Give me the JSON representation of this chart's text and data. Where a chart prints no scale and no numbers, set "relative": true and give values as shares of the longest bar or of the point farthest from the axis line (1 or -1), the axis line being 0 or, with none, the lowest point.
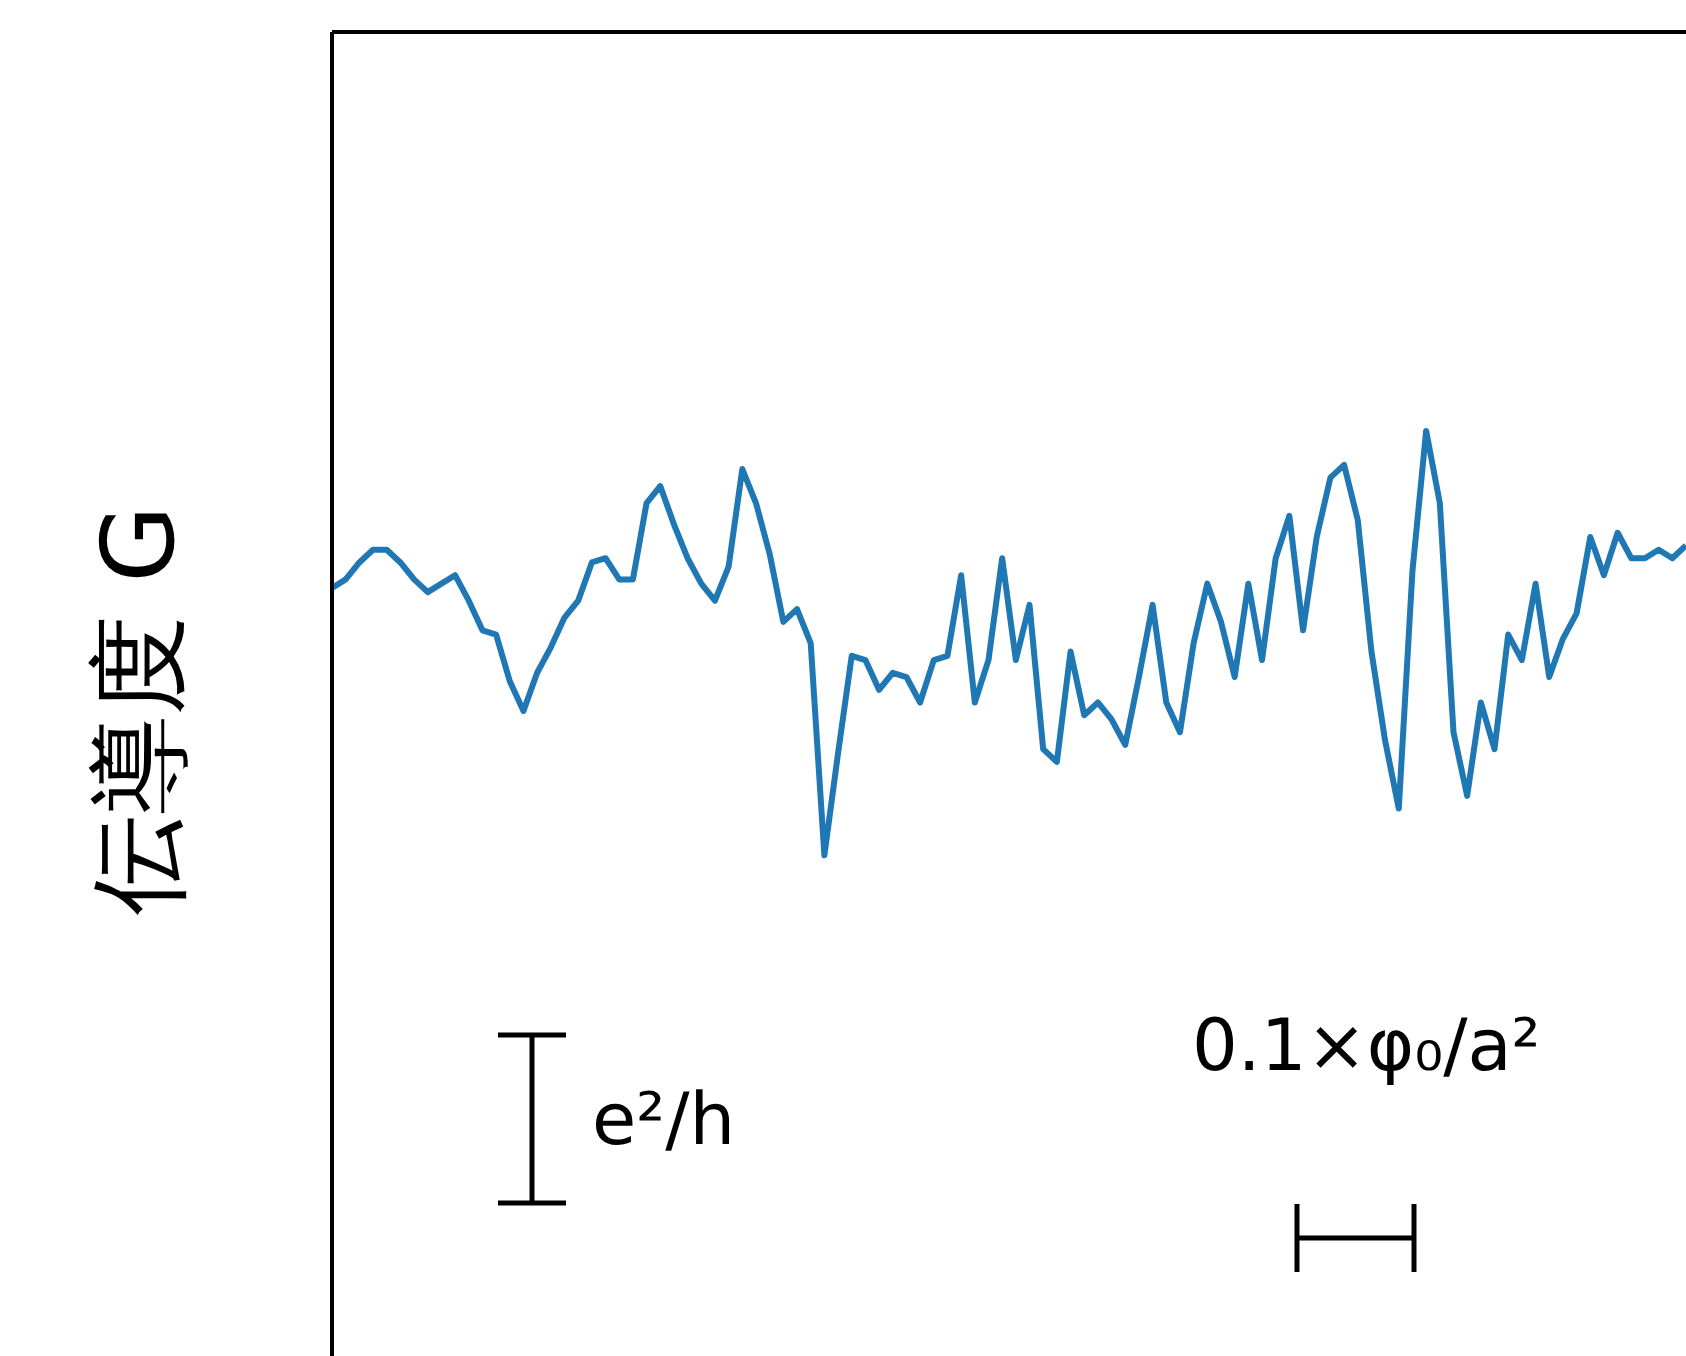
{
  "chart_data": {
    "type": "line",
    "relative": true,
    "ylabel": "伝導度 G",
    "color": "#1f77b4",
    "marker": "none",
    "categories": [
      null,
      null,
      null,
      null,
      null,
      null,
      null,
      null,
      null,
      null,
      null,
      null,
      null,
      null,
      null,
      null,
      null,
      null,
      null,
      null,
      null,
      null,
      null,
      null,
      null,
      null,
      null,
      null,
      null,
      null,
      null,
      null,
      null,
      null,
      null,
      null,
      null,
      null,
      null,
      null,
      null,
      null,
      null,
      null,
      null,
      null,
      null,
      null,
      null,
      null,
      null,
      null,
      null,
      null,
      null,
      null,
      null,
      null,
      null,
      null,
      null,
      null,
      null,
      null,
      null,
      null,
      null,
      null,
      null,
      null,
      null,
      null,
      null,
      null,
      null,
      null,
      null,
      null,
      null,
      null,
      null,
      null,
      null,
      null,
      null,
      null,
      null,
      null,
      null,
      null,
      null,
      null,
      null,
      null,
      null,
      null,
      null,
      null,
      null,
      null
    ],
    "values": [
      0.63,
      0.65,
      0.69,
      0.72,
      0.72,
      0.69,
      0.65,
      0.62,
      0.64,
      0.66,
      0.6,
      0.53,
      0.52,
      0.41,
      0.34,
      0.43,
      0.49,
      0.56,
      0.6,
      0.69,
      0.7,
      0.65,
      0.65,
      0.83,
      0.87,
      0.78,
      0.7,
      0.64,
      0.6,
      0.68,
      0.91,
      0.83,
      0.71,
      0.55,
      0.58,
      0.5,
      0,
      0.24,
      0.47,
      0.46,
      0.39,
      0.43,
      0.42,
      0.36,
      0.46,
      0.47,
      0.66,
      0.36,
      0.46,
      0.7,
      0.46,
      0.59,
      0.25,
      0.22,
      0.48,
      0.33,
      0.36,
      0.32,
      0.26,
      0.42,
      0.59,
      0.36,
      0.29,
      0.5,
      0.64,
      0.55,
      0.42,
      0.64,
      0.46,
      0.7,
      0.8,
      0.53,
      0.75,
      0.89,
      0.92,
      0.79,
      0.48,
      0.27,
      0.11,
      0.67,
      1,
      0.83,
      0.29,
      0.14,
      0.36,
      0.25,
      0.52,
      0.46,
      0.64,
      0.42,
      0.51,
      0.57,
      0.75,
      0.66,
      0.76,
      0.7,
      0.7,
      0.72,
      0.7,
      0.73
    ],
    "annotations": [
      "e²/h",
      "0.1×φ₀/a²"
    ]
  }
}
